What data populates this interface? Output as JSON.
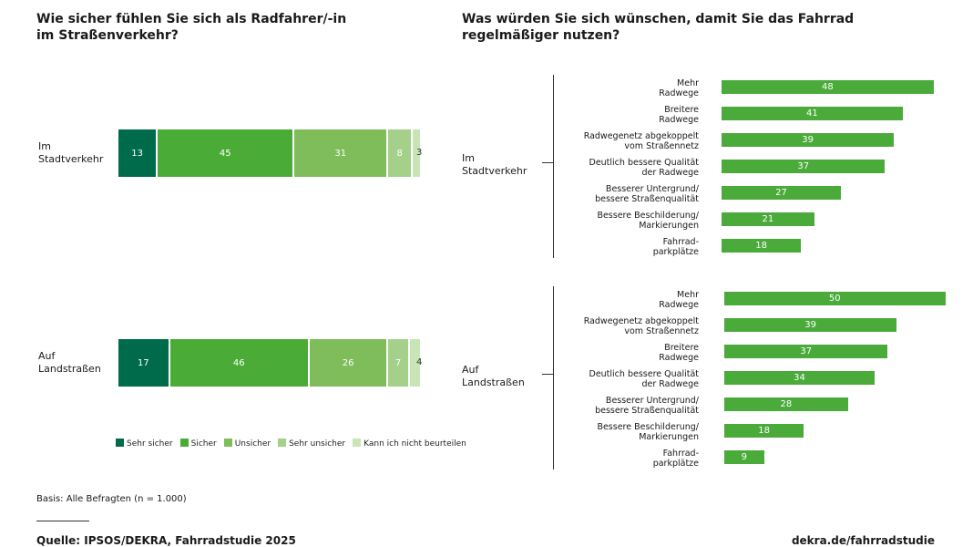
{
  "left": {
    "title": "Wie sicher fühlen Sie sich als Radfahrer/-in\nim Straßenverkehr?"
  },
  "right": {
    "title": "Was würden Sie sich wünschen, damit Sie das Fahrrad\nregelmäßiger nutzen?"
  },
  "colors": {
    "sehr_sicher": "#006b4a",
    "sicher": "#4bab37",
    "unsicher": "#7fbd5b",
    "sehr_unsicher": "#a5d08a",
    "kann_nicht": "#c9e4b7",
    "bar": "#4aaa3a"
  },
  "chart_data": [
    {
      "type": "bar",
      "orientation": "horizontal-stacked",
      "unit": "percent",
      "categories": [
        "Im\nStadtverkehr",
        "Auf\nLandstraßen"
      ],
      "series": [
        {
          "name": "Sehr sicher",
          "values": [
            13,
            17
          ]
        },
        {
          "name": "Sicher",
          "values": [
            45,
            46
          ]
        },
        {
          "name": "Unsicher",
          "values": [
            31,
            26
          ]
        },
        {
          "name": "Sehr unsicher",
          "values": [
            8,
            7
          ]
        },
        {
          "name": "Kann ich nicht beurteilen",
          "values": [
            3,
            4
          ]
        }
      ],
      "legend": "bottom"
    },
    {
      "type": "bar",
      "orientation": "horizontal",
      "unit": "percent",
      "groups": [
        {
          "name": "Im\nStadtverkehr",
          "items": [
            {
              "label": "Mehr\nRadwege",
              "value": 48
            },
            {
              "label": "Breitere\nRadwege",
              "value": 41
            },
            {
              "label": "Radwegenetz abgekoppelt\nvom Straßennetz",
              "value": 39
            },
            {
              "label": "Deutlich bessere Qualität\nder Radwege",
              "value": 37
            },
            {
              "label": "Besserer Untergrund/\nbessere Straßenqualität",
              "value": 27
            },
            {
              "label": "Bessere Beschilderung/\nMarkierungen",
              "value": 21
            },
            {
              "label": "Fahrrad-\nparkplätze",
              "value": 18
            }
          ]
        },
        {
          "name": "Auf\nLandstraßen",
          "items": [
            {
              "label": "Mehr\nRadwege",
              "value": 50
            },
            {
              "label": "Radwegenetz abgekoppelt\nvom Straßennetz",
              "value": 39
            },
            {
              "label": "Breitere\nRadwege",
              "value": 37
            },
            {
              "label": "Deutlich bessere Qualität\nder Radwege",
              "value": 34
            },
            {
              "label": "Besserer Untergrund/\nbessere Straßenqualität",
              "value": 28
            },
            {
              "label": "Bessere Beschilderung/\nMarkierungen",
              "value": 18
            },
            {
              "label": "Fahrrad-\nparkplätze",
              "value": 9
            }
          ]
        }
      ]
    }
  ],
  "footer": {
    "basis": "Basis: Alle Befragten (n = 1.000)",
    "source": "Quelle: IPSOS/DEKRA, Fahrradstudie 2025",
    "link": "dekra.de/fahrradstudie"
  }
}
